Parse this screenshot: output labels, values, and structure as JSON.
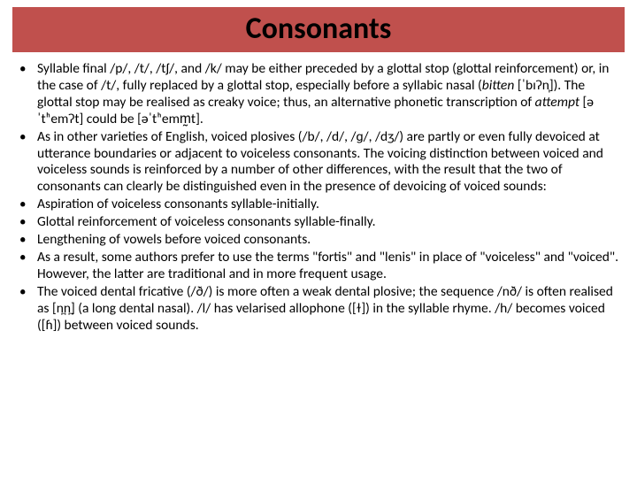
{
  "title": "Consonants",
  "bullets": [
    "Syllable final /p/, /t/, /tʃ/, and /k/ may be either preceded by a glottal stop (glottal reinforcement) or, in the case of /t/, fully replaced by a glottal stop, especially before a syllabic nasal (<span class=\"italic\">bitten</span> [ˈbɪʔn̩]). The glottal stop may be realised as creaky voice; thus, an alternative phonetic transcription of <span class=\"italic\">attempt</span> [əˈtʰemʔt] could be [əˈtʰemm̰t].",
    "As in other varieties of English, voiced plosives (/b/, /d/, /ɡ/, /dʒ/) are partly or even fully devoiced at utterance boundaries or adjacent to voiceless consonants. The voicing distinction between voiced and voiceless sounds is reinforced by a number of other differences, with the result that the two of consonants can clearly be distinguished even in the presence of devoicing of voiced sounds:",
    "Aspiration of voiceless consonants syllable-initially.",
    "Glottal reinforcement of voiceless consonants syllable-finally.",
    "Lengthening of vowels before voiced consonants.",
    "As a result, some authors prefer to use the terms \"fortis\" and \"lenis\" in place of \"voiceless\" and \"voiced\". However, the latter are traditional and in more frequent usage.",
    "The voiced dental fricative (/ð/) is more often a weak dental plosive; the sequence /nð/ is often realised as [n̪n̪] (a long dental nasal). /l/ has velarised allophone ([ɫ]) in the syllable rhyme. /h/ becomes voiced ([ɦ]) between voiced sounds."
  ],
  "colors": {
    "title_bg": "#c0504d",
    "title_text": "#000000",
    "body_text": "#000000",
    "page_bg": "#ffffff"
  },
  "typography": {
    "title_fontsize": 34,
    "body_fontsize": 15.5,
    "line_height": 1.22
  }
}
